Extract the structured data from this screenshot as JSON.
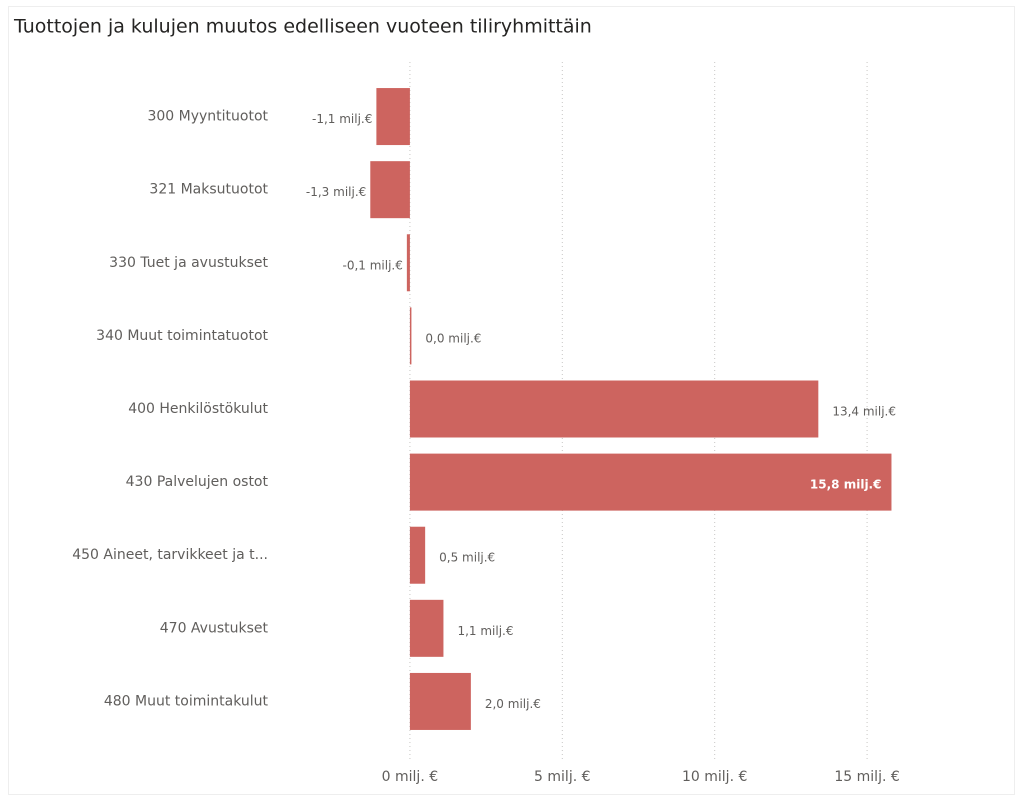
{
  "chart_data": {
    "type": "bar",
    "orientation": "horizontal",
    "title": "Tuottojen ja kulujen muutos edelliseen vuoteen tiliryhmittäin",
    "categories": [
      "300 Myyntituotot",
      "321 Maksutuotot",
      "330 Tuet ja avustukset",
      "340 Muut toimintatuotot",
      "400 Henkilöstökulut",
      "430 Palvelujen ostot",
      "450 Aineet, tarvikkeet ja t...",
      "470 Avustukset",
      "480 Muut toimintakulut"
    ],
    "values": [
      -1.1,
      -1.3,
      -0.1,
      0.0,
      13.4,
      15.8,
      0.5,
      1.1,
      2.0
    ],
    "value_labels": [
      "-1,1 milj.€",
      "-1,3 milj.€",
      "-0,1 milj.€",
      "0,0 milj.€",
      "13,4 milj.€",
      "15,8 milj.€",
      "0,5 milj.€",
      "1,1 milj.€",
      "2,0 milj.€"
    ],
    "color": "#cd645f",
    "xlim": [
      -4,
      19
    ],
    "xticks": [
      {
        "value": 0,
        "label": "0 milj. €"
      },
      {
        "value": 5,
        "label": "5 milj. €"
      },
      {
        "value": 10,
        "label": "10 milj. €"
      },
      {
        "value": 15,
        "label": "15 milj. €"
      }
    ],
    "grid": true
  }
}
